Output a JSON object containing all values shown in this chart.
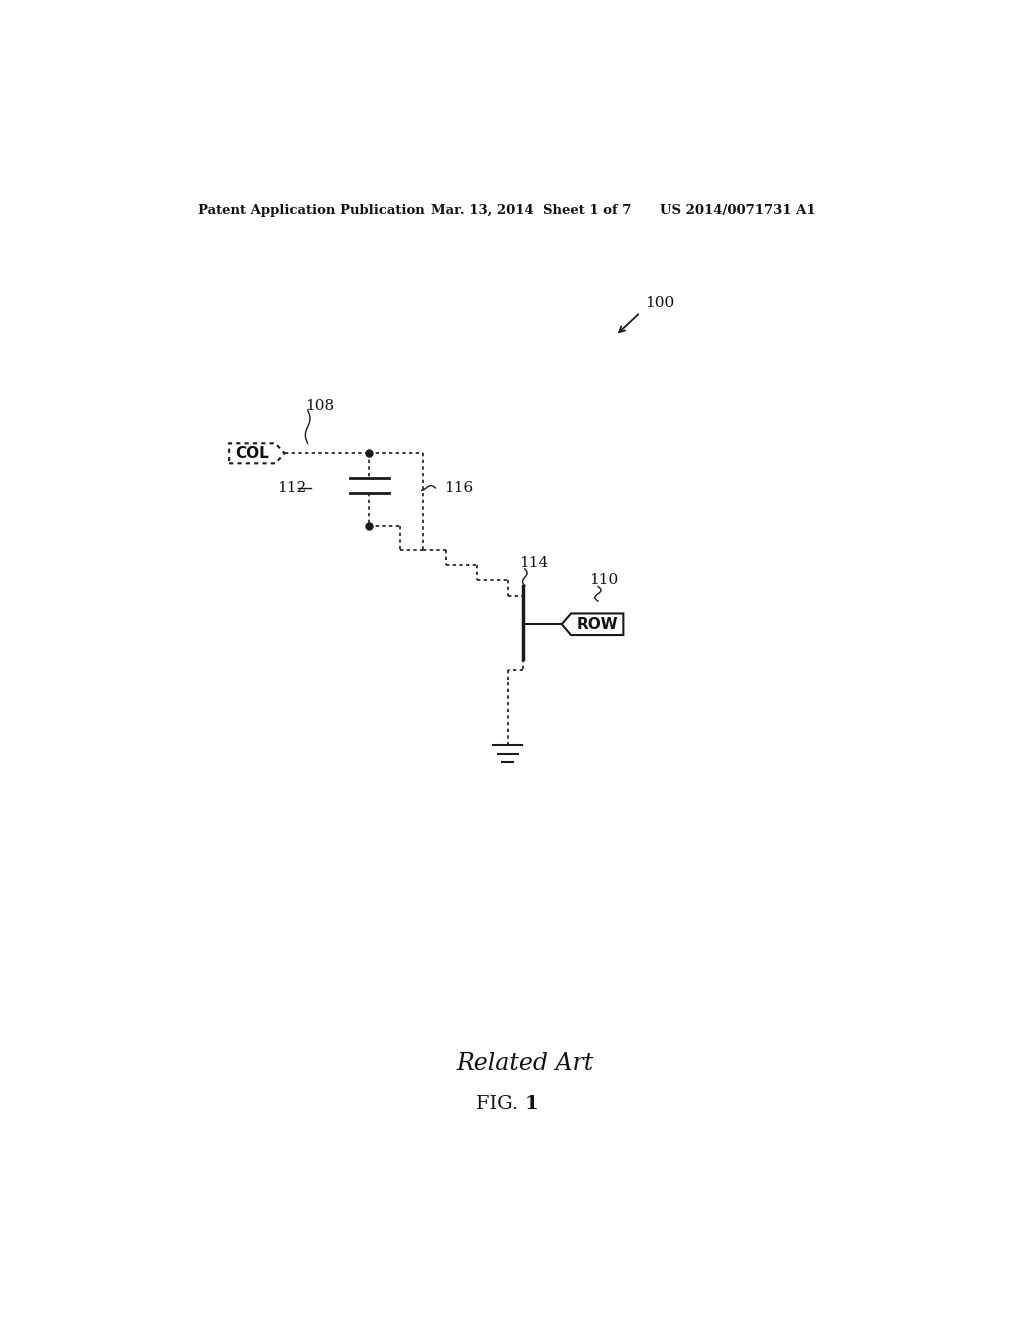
{
  "bg_color": "#ffffff",
  "header_left": "Patent Application Publication",
  "header_mid": "Mar. 13, 2014  Sheet 1 of 7",
  "header_right": "US 2014/0071731 A1",
  "footer_label1": "Related Art",
  "footer_label2": "FIG. 1",
  "ref_100": "100",
  "ref_108": "108",
  "ref_112": "112",
  "ref_116": "116",
  "ref_114": "114",
  "ref_110": "110",
  "col_label": "COL",
  "row_label": "ROW",
  "line_color": "#1a1a1a",
  "dot_color": "#1a1a1a"
}
